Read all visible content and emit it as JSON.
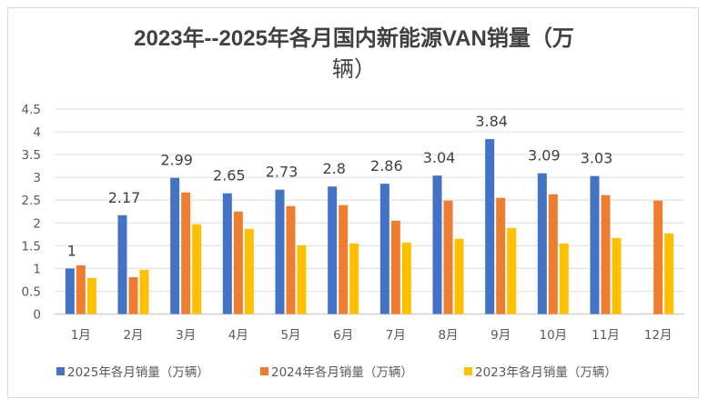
{
  "chart_data": {
    "type": "bar",
    "title_line1": "2023年--2025年各月国内新能源VAN销量（万",
    "title_line2": "辆）",
    "categories": [
      "1月",
      "2月",
      "3月",
      "4月",
      "5月",
      "6月",
      "7月",
      "8月",
      "9月",
      "10月",
      "11月",
      "12月"
    ],
    "series": [
      {
        "name": "2025年各月销量（万辆）",
        "color": "#4472C4",
        "values": [
          1,
          2.17,
          2.99,
          2.65,
          2.73,
          2.8,
          2.86,
          3.04,
          3.84,
          3.09,
          3.03,
          null
        ],
        "labels": [
          "1",
          "2.17",
          "2.99",
          "2.65",
          "2.73",
          "2.8",
          "2.86",
          "3.04",
          "3.84",
          "3.09",
          "3.03",
          ""
        ]
      },
      {
        "name": "2024年各月销量（万辆）",
        "color": "#ED7D31",
        "values": [
          1.07,
          0.81,
          2.67,
          2.25,
          2.37,
          2.39,
          2.05,
          2.49,
          2.55,
          2.63,
          2.61,
          2.49
        ]
      },
      {
        "name": "2023年各月销量（万辆）",
        "color": "#FFC000",
        "values": [
          0.79,
          0.97,
          1.97,
          1.87,
          1.51,
          1.55,
          1.57,
          1.65,
          1.89,
          1.55,
          1.67,
          1.77
        ]
      }
    ],
    "y_ticks": [
      "0",
      "0.5",
      "1",
      "1.5",
      "2",
      "2.5",
      "3",
      "3.5",
      "4",
      "4.5"
    ],
    "ylim": [
      0,
      4.5
    ],
    "xlabel": "",
    "ylabel": "",
    "grid": true,
    "legend_position": "bottom"
  }
}
